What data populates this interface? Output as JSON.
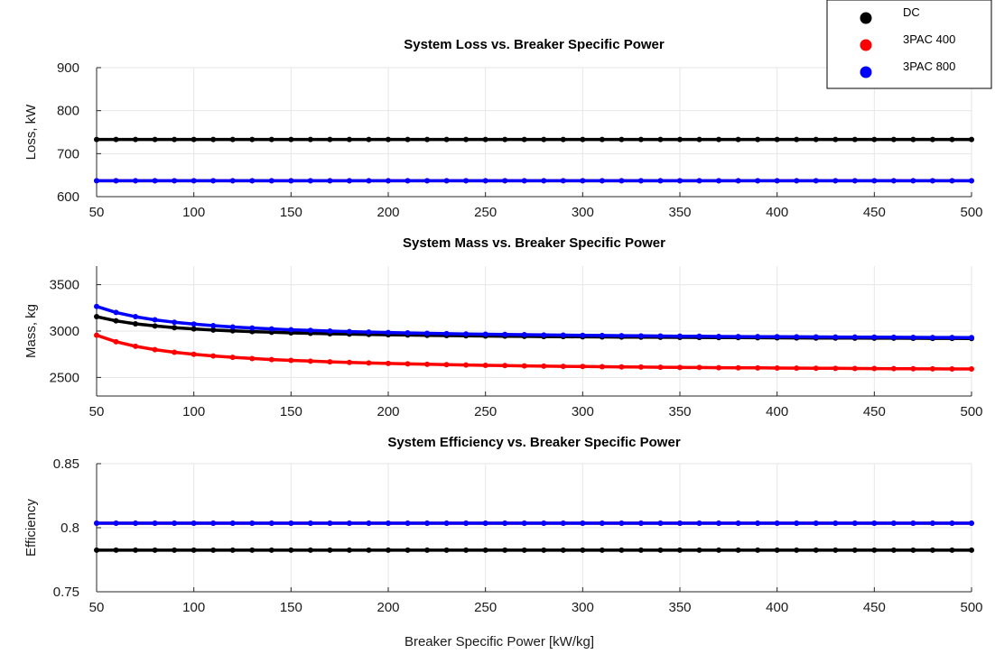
{
  "figure": {
    "xlabel": "Breaker Specific Power [kW/kg]"
  },
  "legend": {
    "location": "top-right",
    "entries": [
      {
        "name": "DC",
        "color": "#000000"
      },
      {
        "name": "3PAC 400",
        "color": "#ff0000"
      },
      {
        "name": "3PAC 800",
        "color": "#0000ff"
      }
    ]
  },
  "chart_data": [
    {
      "type": "line",
      "title": "System Loss vs. Breaker Specific Power",
      "ylabel": "Loss, kW",
      "xlabel": "",
      "xlim": [
        50,
        500
      ],
      "ylim": [
        600,
        900
      ],
      "xticks": [
        50,
        100,
        150,
        200,
        250,
        300,
        350,
        400,
        450,
        500
      ],
      "yticks": [
        600,
        700,
        800,
        900
      ],
      "grid": true,
      "x": [
        50,
        60,
        70,
        80,
        90,
        100,
        110,
        120,
        130,
        140,
        150,
        160,
        170,
        180,
        190,
        200,
        210,
        220,
        230,
        240,
        250,
        260,
        270,
        280,
        290,
        300,
        310,
        320,
        330,
        340,
        350,
        360,
        370,
        380,
        390,
        400,
        410,
        420,
        430,
        440,
        450,
        460,
        470,
        480,
        490,
        500
      ],
      "series": [
        {
          "name": "DC",
          "color": "#000000",
          "values": [
            733,
            733,
            733,
            733,
            733,
            733,
            733,
            733,
            733,
            733,
            733,
            733,
            733,
            733,
            733,
            733,
            733,
            733,
            733,
            733,
            733,
            733,
            733,
            733,
            733,
            733,
            733,
            733,
            733,
            733,
            733,
            733,
            733,
            733,
            733,
            733,
            733,
            733,
            733,
            733,
            733,
            733,
            733,
            733,
            733,
            733
          ]
        },
        {
          "name": "3PAC 400",
          "color": "#ff0000",
          "values": [
            637,
            637,
            637,
            637,
            637,
            637,
            637,
            637,
            637,
            637,
            637,
            637,
            637,
            637,
            637,
            637,
            637,
            637,
            637,
            637,
            637,
            637,
            637,
            637,
            637,
            637,
            637,
            637,
            637,
            637,
            637,
            637,
            637,
            637,
            637,
            637,
            637,
            637,
            637,
            637,
            637,
            637,
            637,
            637,
            637,
            637
          ]
        },
        {
          "name": "3PAC 800",
          "color": "#0000ff",
          "values": [
            637,
            637,
            637,
            637,
            637,
            637,
            637,
            637,
            637,
            637,
            637,
            637,
            637,
            637,
            637,
            637,
            637,
            637,
            637,
            637,
            637,
            637,
            637,
            637,
            637,
            637,
            637,
            637,
            637,
            637,
            637,
            637,
            637,
            637,
            637,
            637,
            637,
            637,
            637,
            637,
            637,
            637,
            637,
            637,
            637,
            637
          ]
        }
      ]
    },
    {
      "type": "line",
      "title": "System Mass vs. Breaker Specific Power",
      "ylabel": "Mass, kg",
      "xlabel": "",
      "xlim": [
        50,
        500
      ],
      "ylim": [
        2300,
        3700
      ],
      "xticks": [
        50,
        100,
        150,
        200,
        250,
        300,
        350,
        400,
        450,
        500
      ],
      "yticks": [
        2500,
        3000,
        3500
      ],
      "grid": true,
      "x": [
        50,
        60,
        70,
        80,
        90,
        100,
        110,
        120,
        130,
        140,
        150,
        160,
        170,
        180,
        190,
        200,
        210,
        220,
        230,
        240,
        250,
        260,
        270,
        280,
        290,
        300,
        310,
        320,
        330,
        340,
        350,
        360,
        370,
        380,
        390,
        400,
        410,
        420,
        430,
        440,
        450,
        460,
        470,
        480,
        490,
        500
      ],
      "series": [
        {
          "name": "DC",
          "color": "#000000",
          "values": [
            3155,
            3110,
            3078,
            3055,
            3037,
            3023,
            3011,
            3002,
            2994,
            2987,
            2981,
            2976,
            2971,
            2967,
            2963,
            2960,
            2957,
            2954,
            2951,
            2949,
            2947,
            2945,
            2943,
            2941,
            2940,
            2938,
            2937,
            2935,
            2934,
            2933,
            2932,
            2931,
            2930,
            2929,
            2928,
            2927,
            2926,
            2925,
            2925,
            2924,
            2923,
            2923,
            2922,
            2921,
            2921,
            2920
          ]
        },
        {
          "name": "3PAC 400",
          "color": "#ff0000",
          "values": [
            2955,
            2885,
            2836,
            2800,
            2772,
            2750,
            2732,
            2717,
            2704,
            2693,
            2684,
            2676,
            2668,
            2662,
            2656,
            2651,
            2646,
            2642,
            2638,
            2634,
            2631,
            2628,
            2625,
            2622,
            2620,
            2618,
            2616,
            2614,
            2612,
            2610,
            2608,
            2607,
            2605,
            2604,
            2603,
            2601,
            2600,
            2599,
            2598,
            2597,
            2596,
            2595,
            2594,
            2593,
            2592,
            2592
          ]
        },
        {
          "name": "3PAC 800",
          "color": "#0000ff",
          "values": [
            3265,
            3200,
            3155,
            3121,
            3095,
            3075,
            3058,
            3044,
            3033,
            3023,
            3014,
            3007,
            3000,
            2994,
            2989,
            2984,
            2980,
            2976,
            2972,
            2969,
            2966,
            2963,
            2961,
            2958,
            2956,
            2954,
            2952,
            2950,
            2948,
            2947,
            2945,
            2944,
            2942,
            2941,
            2940,
            2939,
            2938,
            2937,
            2936,
            2935,
            2934,
            2933,
            2932,
            2931,
            2931,
            2930
          ]
        }
      ]
    },
    {
      "type": "line",
      "title": "System Efficiency vs. Breaker Specific Power",
      "ylabel": "Efficiency",
      "xlabel": "Breaker Specific Power [kW/kg]",
      "xlim": [
        50,
        500
      ],
      "ylim": [
        0.75,
        0.85
      ],
      "xticks": [
        50,
        100,
        150,
        200,
        250,
        300,
        350,
        400,
        450,
        500
      ],
      "yticks": [
        0.75,
        0.8,
        0.85
      ],
      "grid": true,
      "x": [
        50,
        60,
        70,
        80,
        90,
        100,
        110,
        120,
        130,
        140,
        150,
        160,
        170,
        180,
        190,
        200,
        210,
        220,
        230,
        240,
        250,
        260,
        270,
        280,
        290,
        300,
        310,
        320,
        330,
        340,
        350,
        360,
        370,
        380,
        390,
        400,
        410,
        420,
        430,
        440,
        450,
        460,
        470,
        480,
        490,
        500
      ],
      "series": [
        {
          "name": "DC",
          "color": "#000000",
          "values": [
            0.7825,
            0.7825,
            0.7825,
            0.7825,
            0.7825,
            0.7825,
            0.7825,
            0.7825,
            0.7825,
            0.7825,
            0.7825,
            0.7825,
            0.7825,
            0.7825,
            0.7825,
            0.7825,
            0.7825,
            0.7825,
            0.7825,
            0.7825,
            0.7825,
            0.7825,
            0.7825,
            0.7825,
            0.7825,
            0.7825,
            0.7825,
            0.7825,
            0.7825,
            0.7825,
            0.7825,
            0.7825,
            0.7825,
            0.7825,
            0.7825,
            0.7825,
            0.7825,
            0.7825,
            0.7825,
            0.7825,
            0.7825,
            0.7825,
            0.7825,
            0.7825,
            0.7825,
            0.7825
          ]
        },
        {
          "name": "3PAC 400",
          "color": "#ff0000",
          "values": [
            0.8035,
            0.8035,
            0.8035,
            0.8035,
            0.8035,
            0.8035,
            0.8035,
            0.8035,
            0.8035,
            0.8035,
            0.8035,
            0.8035,
            0.8035,
            0.8035,
            0.8035,
            0.8035,
            0.8035,
            0.8035,
            0.8035,
            0.8035,
            0.8035,
            0.8035,
            0.8035,
            0.8035,
            0.8035,
            0.8035,
            0.8035,
            0.8035,
            0.8035,
            0.8035,
            0.8035,
            0.8035,
            0.8035,
            0.8035,
            0.8035,
            0.8035,
            0.8035,
            0.8035,
            0.8035,
            0.8035,
            0.8035,
            0.8035,
            0.8035,
            0.8035,
            0.8035,
            0.8035
          ]
        },
        {
          "name": "3PAC 800",
          "color": "#0000ff",
          "values": [
            0.8035,
            0.8035,
            0.8035,
            0.8035,
            0.8035,
            0.8035,
            0.8035,
            0.8035,
            0.8035,
            0.8035,
            0.8035,
            0.8035,
            0.8035,
            0.8035,
            0.8035,
            0.8035,
            0.8035,
            0.8035,
            0.8035,
            0.8035,
            0.8035,
            0.8035,
            0.8035,
            0.8035,
            0.8035,
            0.8035,
            0.8035,
            0.8035,
            0.8035,
            0.8035,
            0.8035,
            0.8035,
            0.8035,
            0.8035,
            0.8035,
            0.8035,
            0.8035,
            0.8035,
            0.8035,
            0.8035,
            0.8035,
            0.8035,
            0.8035,
            0.8035,
            0.8035,
            0.8035
          ]
        }
      ]
    }
  ]
}
